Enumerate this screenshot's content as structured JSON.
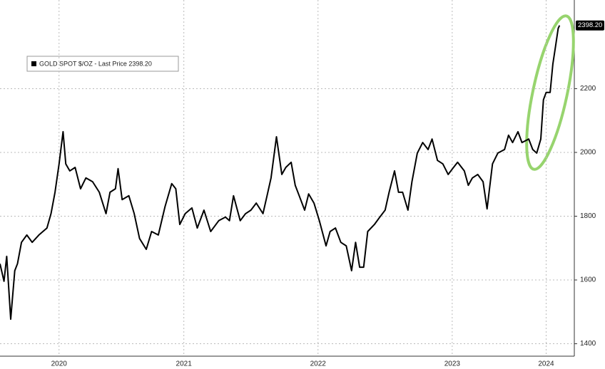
{
  "chart_data": {
    "type": "line",
    "series": [
      {
        "name": "GOLD SPOT $/OZ - Last Price 2398.20",
        "color": "#000000",
        "x": [
          2020.13,
          2020.16,
          2020.18,
          2020.21,
          2020.24,
          2020.26,
          2020.29,
          2020.33,
          2020.37,
          2020.42,
          2020.48,
          2020.51,
          2020.54,
          2020.57,
          2020.6,
          2020.62,
          2020.65,
          2020.69,
          2020.73,
          2020.77,
          2020.82,
          2020.87,
          2020.92,
          2020.95,
          2020.99,
          2021.01,
          2021.04,
          2021.09,
          2021.13,
          2021.17,
          2021.22,
          2021.26,
          2021.31,
          2021.36,
          2021.41,
          2021.44,
          2021.47,
          2021.51,
          2021.56,
          2021.6,
          2021.65,
          2021.7,
          2021.76,
          2021.81,
          2021.84,
          2021.87,
          2021.92,
          2021.96,
          2022.0,
          2022.04,
          2022.09,
          2022.12,
          2022.15,
          2022.19,
          2022.23,
          2022.26,
          2022.3,
          2022.33,
          2022.36,
          2022.4,
          2022.43,
          2022.47,
          2022.51,
          2022.56,
          2022.59,
          2022.63,
          2022.67,
          2022.71,
          2022.75,
          2022.78,
          2022.81,
          2022.84,
          2022.87,
          2022.92,
          2022.96,
          2023.0,
          2023.03,
          2023.07,
          2023.1,
          2023.13,
          2023.17,
          2023.2,
          2023.24,
          2023.28,
          2023.32,
          2023.35,
          2023.39,
          2023.43,
          2023.47,
          2023.51,
          2023.54,
          2023.59,
          2023.62,
          2023.65,
          2023.69,
          2023.73,
          2023.76,
          2023.8,
          2023.84,
          2023.89,
          2023.92,
          2023.95,
          2023.99,
          2024.02,
          2024.07,
          2024.1,
          2024.13,
          2024.16,
          2024.18,
          2024.2,
          2024.23,
          2024.25,
          2024.27,
          2024.29,
          2024.3
        ],
        "values": [
          1651,
          1596,
          1674,
          1477,
          1629,
          1651,
          1718,
          1741,
          1718,
          1741,
          1763,
          1808,
          1875,
          1964,
          2065,
          1964,
          1942,
          1953,
          1886,
          1920,
          1908,
          1875,
          1808,
          1875,
          1886,
          1949,
          1852,
          1864,
          1808,
          1730,
          1696,
          1752,
          1741,
          1830,
          1902,
          1886,
          1774,
          1808,
          1826,
          1763,
          1819,
          1752,
          1786,
          1797,
          1786,
          1864,
          1786,
          1808,
          1819,
          1841,
          1808,
          1864,
          1920,
          2049,
          1931,
          1953,
          1969,
          1897,
          1864,
          1819,
          1870,
          1841,
          1786,
          1707,
          1752,
          1763,
          1718,
          1707,
          1629,
          1718,
          1640,
          1640,
          1752,
          1774,
          1797,
          1819,
          1875,
          1942,
          1875,
          1875,
          1819,
          1908,
          1998,
          2031,
          2009,
          2042,
          1975,
          1964,
          1931,
          1953,
          1969,
          1942,
          1897,
          1920,
          1931,
          1908,
          1823,
          1964,
          1998,
          2009,
          2054,
          2031,
          2065,
          2031,
          2042,
          2009,
          1998,
          2042,
          2165,
          2188,
          2188,
          2277,
          2333,
          2389,
          2398.2
        ]
      }
    ],
    "last_price_label": "2398.20",
    "xlim": [
      2020.13,
      2024.41
    ],
    "xticks": [
      {
        "value": 2020.57,
        "label": "2020"
      },
      {
        "value": 2021.5,
        "label": "2021"
      },
      {
        "value": 2022.5,
        "label": "2022"
      },
      {
        "value": 2023.5,
        "label": "2023"
      },
      {
        "value": 2024.2,
        "label": "2024"
      }
    ],
    "ylim": [
      1361,
      2478
    ],
    "yticks": [
      1400,
      1600,
      1800,
      2000,
      2200
    ],
    "grid": true
  }
}
